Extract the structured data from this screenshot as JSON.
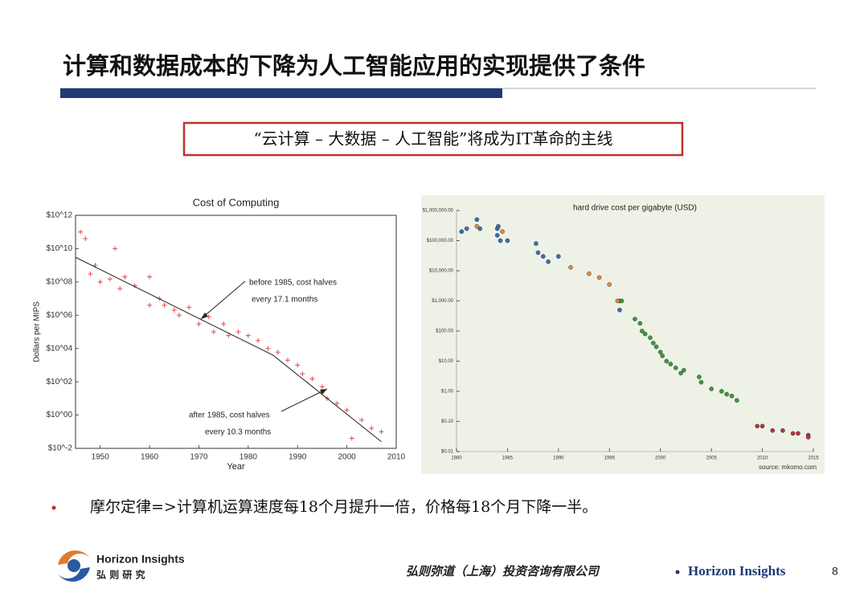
{
  "header": {
    "title": "计算和数据成本的下降为人工智能应用的实现提供了条件",
    "banner": "“云计算 – 大数据 – 人工智能”将成为IT革命的主线"
  },
  "chart_data": [
    {
      "type": "scatter",
      "title": "Cost of Computing",
      "x_label": "Year",
      "y_label": "Dollars per MIPS",
      "log_y": true,
      "marker": "plus",
      "color": "#e8474c",
      "xlim": [
        1945,
        2010
      ],
      "xticks": [
        1950,
        1960,
        1970,
        1980,
        1990,
        2000,
        2010
      ],
      "ylim": [
        0.01,
        1000000000000.0
      ],
      "yticks": [
        {
          "value": 0.01,
          "label": "$10^-2"
        },
        {
          "value": 1,
          "label": "$10^00"
        },
        {
          "value": 100.0,
          "label": "$10^02"
        },
        {
          "value": 10000.0,
          "label": "$10^04"
        },
        {
          "value": 1000000.0,
          "label": "$10^06"
        },
        {
          "value": 100000000.0,
          "label": "$10^08"
        },
        {
          "value": 10000000000.0,
          "label": "$10^10"
        },
        {
          "value": 1000000000000.0,
          "label": "$10^12"
        }
      ],
      "x": [
        1946,
        1947,
        1948,
        1949,
        1950,
        1952,
        1953,
        1954,
        1955,
        1957,
        1960,
        1960,
        1962,
        1963,
        1965,
        1966,
        1968,
        1970,
        1972,
        1973,
        1975,
        1976,
        1978,
        1980,
        1982,
        1984,
        1986,
        1988,
        1990,
        1991,
        1993,
        1995,
        1996,
        1998,
        2000,
        2001,
        2003,
        2005,
        2007
      ],
      "values": [
        100000000000.0,
        40000000000.0,
        300000000.0,
        1000000000.0,
        100000000.0,
        150000000.0,
        10000000000.0,
        40000000.0,
        200000000.0,
        60000000.0,
        200000000.0,
        4000000.0,
        10000000.0,
        4000000.0,
        2000000.0,
        1000000.0,
        3000000.0,
        300000.0,
        800000.0,
        100000.0,
        300000.0,
        60000.0,
        100000.0,
        60000.0,
        30000.0,
        10000.0,
        6000.0,
        2000.0,
        1000.0,
        300,
        150,
        50,
        10,
        5,
        2,
        0.04,
        0.5,
        0.16,
        0.1
      ],
      "trend": {
        "x": [
          1945,
          1985,
          2007
        ],
        "values": [
          3000000000.0,
          4000.0,
          0.025
        ]
      },
      "annotations": [
        "before 1985, cost halves",
        "every 17.1 months",
        "after 1985, cost halves",
        "every 10.3 months"
      ]
    },
    {
      "type": "scatter",
      "title": "hard drive cost per gigabyte (USD)",
      "source": "source: mkomo.com",
      "log_y": true,
      "marker": "circle",
      "xlim": [
        1980,
        2015
      ],
      "xticks": [
        1980,
        1985,
        1990,
        1995,
        2000,
        2005,
        2010,
        2015
      ],
      "ylim": [
        0.01,
        1000000
      ],
      "yticks": [
        {
          "value": 0.01,
          "label": "$0.01"
        },
        {
          "value": 0.1,
          "label": "$0.10"
        },
        {
          "value": 1,
          "label": "$1.00"
        },
        {
          "value": 10,
          "label": "$10.00"
        },
        {
          "value": 100,
          "label": "$100.00"
        },
        {
          "value": 1000,
          "label": "$1,000.00"
        },
        {
          "value": 10000,
          "label": "$10,000.00"
        },
        {
          "value": 100000,
          "label": "$100,000.00"
        },
        {
          "value": 1000000,
          "label": "$1,000,000.00"
        }
      ],
      "series": [
        {
          "color": "#3a6fb0",
          "x": [
            1980.5,
            1981,
            1982,
            1982.3,
            1984,
            1984,
            1984.3,
            1984.1,
            1985,
            1987.8,
            1988,
            1988.5,
            1989,
            1990,
            1996,
            1996
          ],
          "values": [
            200000,
            250000,
            500000,
            250000,
            250000,
            150000,
            100000,
            300000,
            100000,
            80000,
            40000,
            30000,
            20000,
            30000,
            1000,
            500
          ]
        },
        {
          "color": "#e08a3c",
          "x": [
            1982,
            1984.5,
            1991.2,
            1993,
            1994,
            1995,
            1995.8
          ],
          "values": [
            300000,
            200000,
            13000,
            8000,
            6000,
            3500,
            1000
          ]
        },
        {
          "color": "#3f9a3a",
          "x": [
            1996.2,
            1997.5,
            1998,
            1998.2,
            1998.5,
            1999,
            1999.3,
            1999.6,
            2000,
            2000.2,
            2000.6,
            2001,
            2001.5,
            2002,
            2002.3,
            2003.8,
            2004,
            2005,
            2006,
            2006.5,
            2007,
            2007.5
          ],
          "values": [
            1000,
            250,
            180,
            100,
            80,
            60,
            40,
            30,
            20,
            15,
            10,
            8,
            6,
            4,
            5,
            3,
            2,
            1.2,
            1,
            0.8,
            0.7,
            0.5
          ]
        },
        {
          "color": "#b8343a",
          "x": [
            2009.5,
            2010,
            2011,
            2012,
            2013,
            2013.5,
            2014.5,
            2014.5
          ],
          "values": [
            0.07,
            0.07,
            0.05,
            0.05,
            0.04,
            0.04,
            0.035,
            0.03
          ]
        }
      ]
    }
  ],
  "bullet": "摩尔定律=>计算机运算速度每18个月提升一倍，价格每18个月下降一半。",
  "footer": {
    "logo_name": "Horizon Insights",
    "logo_cn": "弘 则 研 究",
    "company": "弘则弥道（上海）投资咨询有限公司",
    "brand": "Horizon Insights",
    "page": 8
  }
}
